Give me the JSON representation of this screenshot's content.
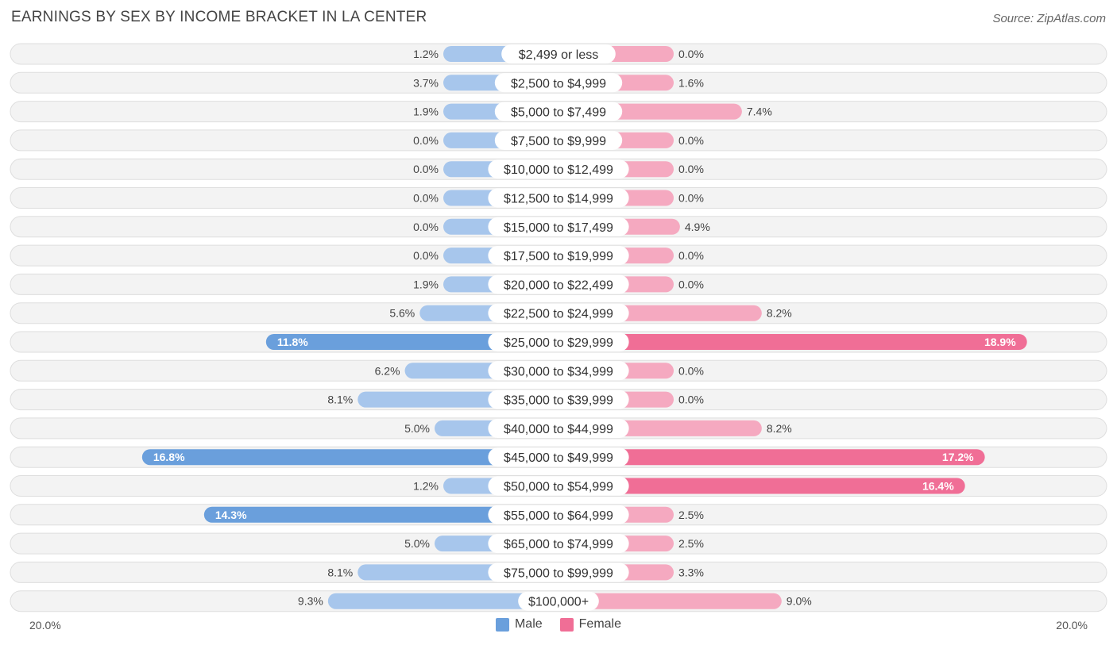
{
  "title": "EARNINGS BY SEX BY INCOME BRACKET IN LA CENTER",
  "source": "Source: ZipAtlas.com",
  "colors": {
    "male_strong": "#6a9fdc",
    "male_light": "#a7c6ec",
    "female_strong": "#f06e96",
    "female_light": "#f5a9c0"
  },
  "chart_data": {
    "type": "bar",
    "orientation": "horizontal-diverging",
    "title": "EARNINGS BY SEX BY INCOME BRACKET IN LA CENTER",
    "axis_max": 20.0,
    "axis_left_label": "20.0%",
    "axis_right_label": "20.0%",
    "categories": [
      "$2,499 or less",
      "$2,500 to $4,999",
      "$5,000 to $7,499",
      "$7,500 to $9,999",
      "$10,000 to $12,499",
      "$12,500 to $14,999",
      "$15,000 to $17,499",
      "$17,500 to $19,999",
      "$20,000 to $22,499",
      "$22,500 to $24,999",
      "$25,000 to $29,999",
      "$30,000 to $34,999",
      "$35,000 to $39,999",
      "$40,000 to $44,999",
      "$45,000 to $49,999",
      "$50,000 to $54,999",
      "$55,000 to $64,999",
      "$65,000 to $74,999",
      "$75,000 to $99,999",
      "$100,000+"
    ],
    "series": [
      {
        "name": "Male",
        "values": [
          1.2,
          3.7,
          1.9,
          0.0,
          0.0,
          0.0,
          0.0,
          0.0,
          1.9,
          5.6,
          11.8,
          6.2,
          8.1,
          5.0,
          16.8,
          1.2,
          14.3,
          5.0,
          8.1,
          9.3
        ],
        "labels": [
          "1.2%",
          "3.7%",
          "1.9%",
          "0.0%",
          "0.0%",
          "0.0%",
          "0.0%",
          "0.0%",
          "1.9%",
          "5.6%",
          "11.8%",
          "6.2%",
          "8.1%",
          "5.0%",
          "16.8%",
          "1.2%",
          "14.3%",
          "5.0%",
          "8.1%",
          "9.3%"
        ]
      },
      {
        "name": "Female",
        "values": [
          0.0,
          1.6,
          7.4,
          0.0,
          0.0,
          0.0,
          4.9,
          0.0,
          0.0,
          8.2,
          18.9,
          0.0,
          0.0,
          8.2,
          17.2,
          16.4,
          2.5,
          2.5,
          3.3,
          9.0
        ],
        "labels": [
          "0.0%",
          "1.6%",
          "7.4%",
          "0.0%",
          "0.0%",
          "0.0%",
          "4.9%",
          "0.0%",
          "0.0%",
          "8.2%",
          "18.9%",
          "0.0%",
          "0.0%",
          "8.2%",
          "17.2%",
          "16.4%",
          "2.5%",
          "2.5%",
          "3.3%",
          "9.0%"
        ]
      }
    ],
    "legend": [
      "Male",
      "Female"
    ],
    "legend_position": "bottom-center"
  }
}
